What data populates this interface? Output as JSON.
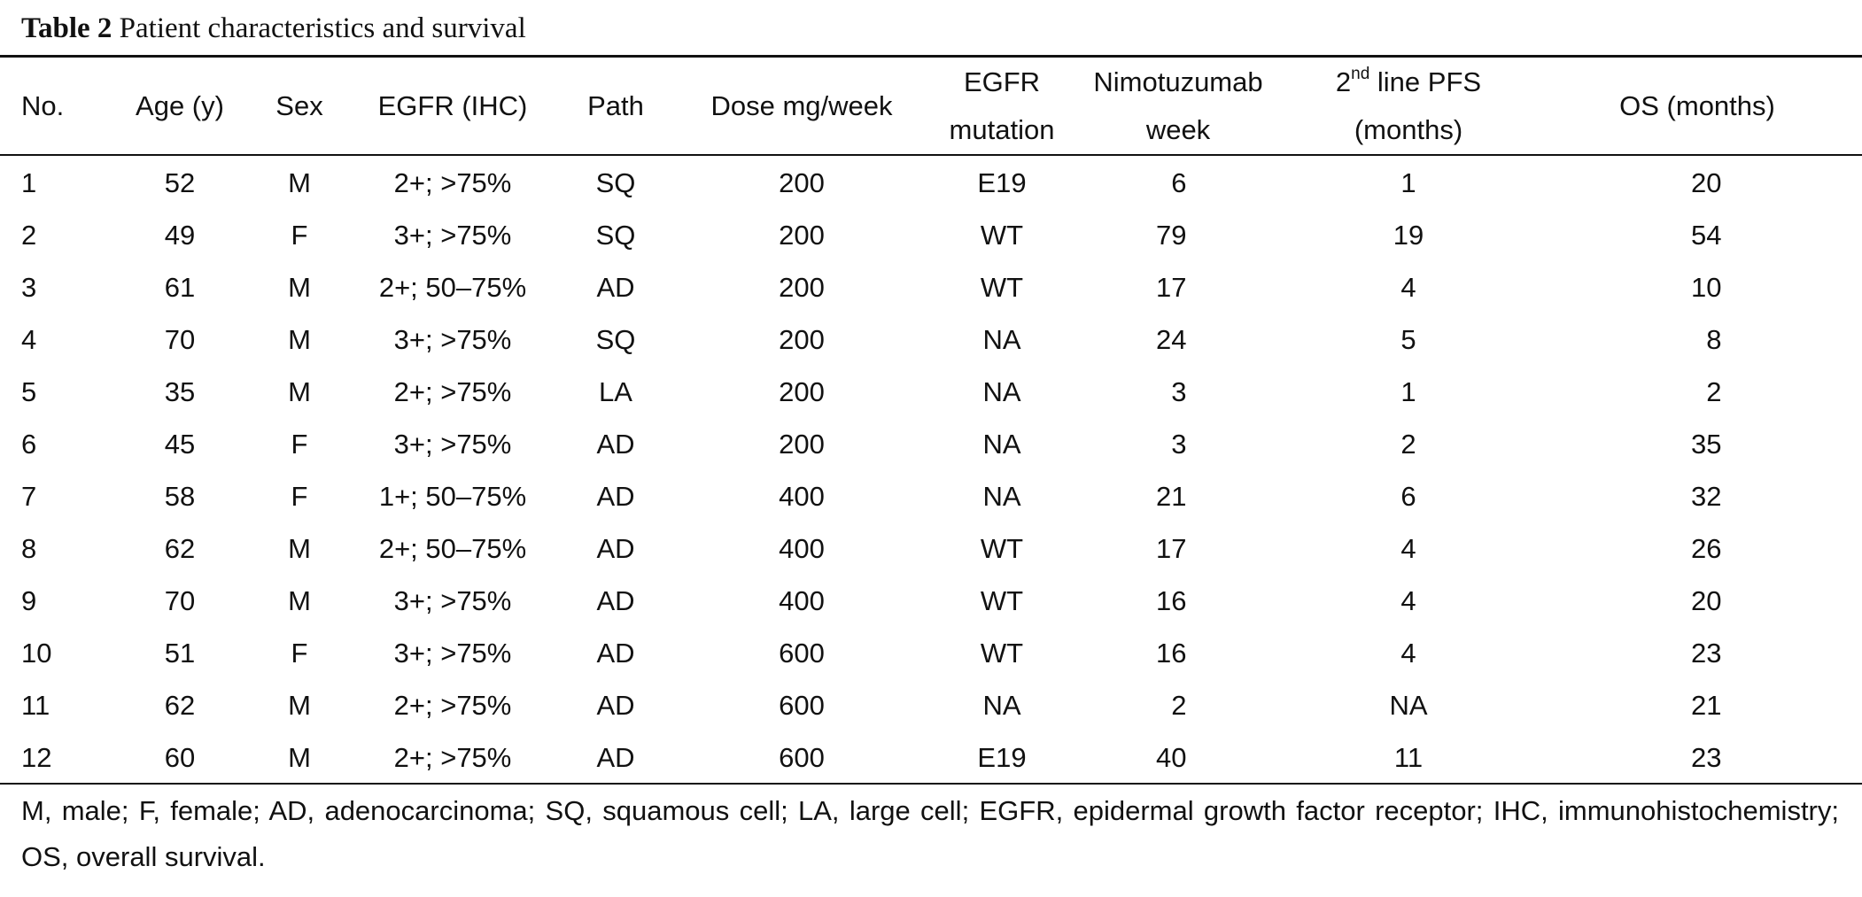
{
  "caption": {
    "label": "Table 2",
    "title": "Patient characteristics and survival"
  },
  "table": {
    "headers": {
      "no": "No.",
      "age": "Age (y)",
      "sex": "Sex",
      "egfr_ihc": "EGFR (IHC)",
      "path": "Path",
      "dose": "Dose mg/week",
      "egfr_mutation_1": "EGFR",
      "egfr_mutation_2": "mutation",
      "nimo_1": "Nimotuzumab",
      "nimo_2": "week",
      "pfs_pre": "2",
      "pfs_sup": "nd",
      "pfs_post": " line PFS",
      "pfs_2": "(months)",
      "os": "OS (months)"
    },
    "rows": [
      {
        "no": "1",
        "age": "52",
        "sex": "M",
        "egfr_ihc": "2+; >75%",
        "path": "SQ",
        "dose": "200",
        "mutation": "E19",
        "nimo": "6",
        "pfs": "1",
        "os": "20"
      },
      {
        "no": "2",
        "age": "49",
        "sex": "F",
        "egfr_ihc": "3+; >75%",
        "path": "SQ",
        "dose": "200",
        "mutation": "WT",
        "nimo": "79",
        "pfs": "19",
        "os": "54"
      },
      {
        "no": "3",
        "age": "61",
        "sex": "M",
        "egfr_ihc": "2+; 50–75%",
        "path": "AD",
        "dose": "200",
        "mutation": "WT",
        "nimo": "17",
        "pfs": "4",
        "os": "10"
      },
      {
        "no": "4",
        "age": "70",
        "sex": "M",
        "egfr_ihc": "3+; >75%",
        "path": "SQ",
        "dose": "200",
        "mutation": "NA",
        "nimo": "24",
        "pfs": "5",
        "os": "8"
      },
      {
        "no": "5",
        "age": "35",
        "sex": "M",
        "egfr_ihc": "2+; >75%",
        "path": "LA",
        "dose": "200",
        "mutation": "NA",
        "nimo": "3",
        "pfs": "1",
        "os": "2"
      },
      {
        "no": "6",
        "age": "45",
        "sex": "F",
        "egfr_ihc": "3+; >75%",
        "path": "AD",
        "dose": "200",
        "mutation": "NA",
        "nimo": "3",
        "pfs": "2",
        "os": "35"
      },
      {
        "no": "7",
        "age": "58",
        "sex": "F",
        "egfr_ihc": "1+; 50–75%",
        "path": "AD",
        "dose": "400",
        "mutation": "NA",
        "nimo": "21",
        "pfs": "6",
        "os": "32"
      },
      {
        "no": "8",
        "age": "62",
        "sex": "M",
        "egfr_ihc": "2+; 50–75%",
        "path": "AD",
        "dose": "400",
        "mutation": "WT",
        "nimo": "17",
        "pfs": "4",
        "os": "26"
      },
      {
        "no": "9",
        "age": "70",
        "sex": "M",
        "egfr_ihc": "3+; >75%",
        "path": "AD",
        "dose": "400",
        "mutation": "WT",
        "nimo": "16",
        "pfs": "4",
        "os": "20"
      },
      {
        "no": "10",
        "age": "51",
        "sex": "F",
        "egfr_ihc": "3+; >75%",
        "path": "AD",
        "dose": "600",
        "mutation": "WT",
        "nimo": "16",
        "pfs": "4",
        "os": "23"
      },
      {
        "no": "11",
        "age": "62",
        "sex": "M",
        "egfr_ihc": "2+; >75%",
        "path": "AD",
        "dose": "600",
        "mutation": "NA",
        "nimo": "2",
        "pfs": "NA",
        "os": "21"
      },
      {
        "no": "12",
        "age": "60",
        "sex": "M",
        "egfr_ihc": "2+; >75%",
        "path": "AD",
        "dose": "600",
        "mutation": "E19",
        "nimo": "40",
        "pfs": "11",
        "os": "23"
      }
    ]
  },
  "footnote": "M, male; F, female; AD, adenocarcinoma; SQ, squamous cell; LA, large cell; EGFR, epidermal growth factor receptor; IHC, immunohistochemistry; OS, overall survival."
}
